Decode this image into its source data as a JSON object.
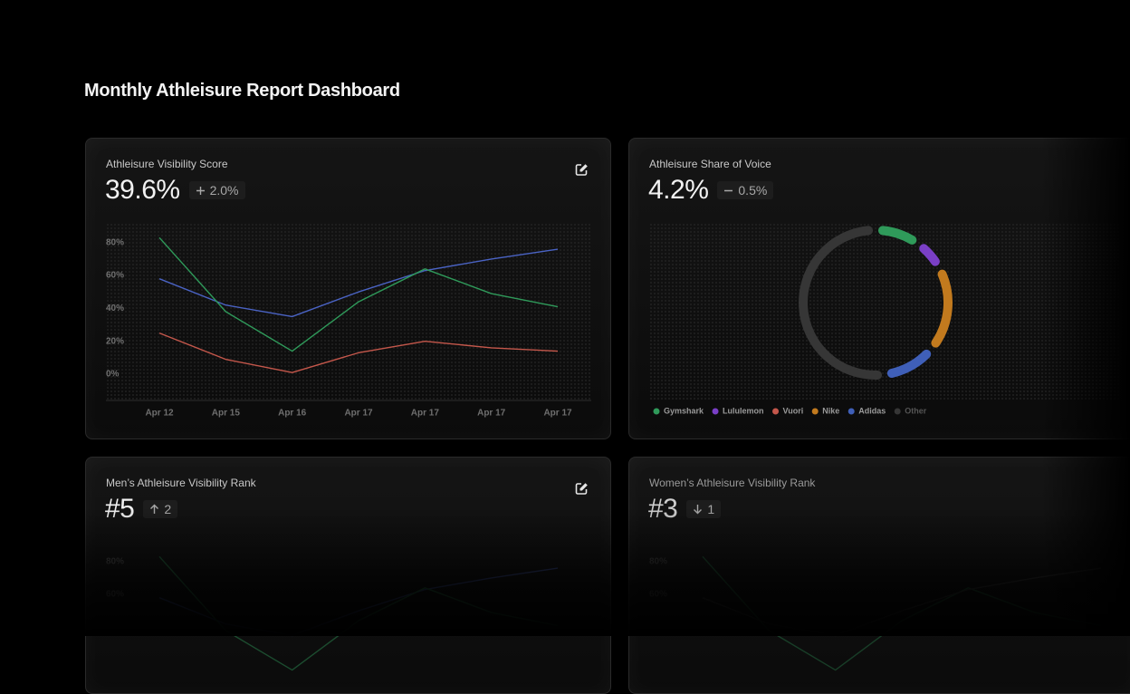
{
  "header": {
    "title": "Monthly Athleisure Report Dashboard"
  },
  "chart_data": [
    {
      "type": "line",
      "title": "Athleisure Visibility Score",
      "kpi": "39.6%",
      "delta": "2.0%",
      "categories": [
        "Apr 12",
        "Apr 15",
        "Apr 16",
        "Apr 17",
        "Apr 17",
        "Apr 17",
        "Apr 17"
      ],
      "series": [
        {
          "color": "#4a63c4",
          "values": [
            58,
            42,
            35,
            50,
            63,
            70,
            76
          ]
        },
        {
          "color": "#2f9a5a",
          "values": [
            83,
            38,
            14,
            44,
            64,
            49,
            41
          ]
        },
        {
          "color": "#c4574b",
          "values": [
            25,
            9,
            1,
            13,
            20,
            16,
            14
          ]
        }
      ],
      "ylim": [
        -16,
        92
      ],
      "yticks": [
        {
          "value": 0,
          "label": "0%"
        },
        {
          "value": 20,
          "label": "20%"
        },
        {
          "value": 40,
          "label": "40%"
        },
        {
          "value": 60,
          "label": "60%"
        },
        {
          "value": 80,
          "label": "80%"
        }
      ]
    },
    {
      "type": "donut",
      "title": "Athleisure Share of Voice",
      "kpi": "4.2%",
      "delta": "0.5%",
      "categories": [
        "Gymshark",
        "Lululemon",
        "Vuori",
        "Nike",
        "Adidas",
        "Other"
      ],
      "values": [
        10,
        7,
        0,
        19,
        12,
        52
      ],
      "colors": [
        "#2f9a5a",
        "#7a3fc6",
        "#c4574b",
        "#c27a1e",
        "#3f5fb8",
        "#363636"
      ]
    },
    {
      "type": "line",
      "title": "Men’s Athleisure Visibility Rank",
      "kpi": "#5",
      "delta": "2",
      "series": [
        {
          "color": "#4a63c4",
          "values": [
            58,
            42,
            35,
            50,
            63,
            70,
            76
          ]
        },
        {
          "color": "#2f9a5a",
          "values": [
            83,
            38,
            14,
            44,
            64,
            49,
            41
          ]
        }
      ],
      "ylim": [
        -16,
        92
      ],
      "yticks": [
        {
          "value": 60,
          "label": "60%"
        },
        {
          "value": 80,
          "label": "80%"
        }
      ]
    },
    {
      "type": "line",
      "title": "Women’s Athleisure Visibility Rank",
      "kpi": "#3",
      "delta": "1",
      "series": [
        {
          "color": "#2f9a5a",
          "values": [
            83,
            38,
            14,
            44,
            64,
            49,
            41
          ]
        },
        {
          "color": "#555555",
          "values": [
            58,
            42,
            35,
            50,
            63,
            70,
            76
          ]
        }
      ],
      "ylim": [
        -16,
        92
      ],
      "yticks": [
        {
          "value": 60,
          "label": "60%"
        },
        {
          "value": 80,
          "label": "80%"
        }
      ]
    }
  ]
}
